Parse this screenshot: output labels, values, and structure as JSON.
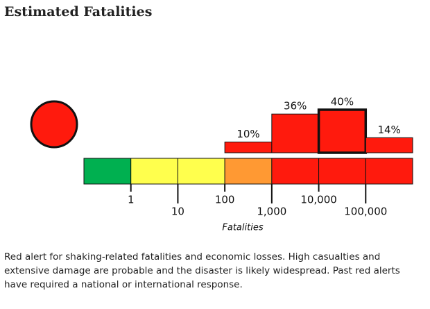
{
  "header": {
    "title": "Estimated Fatalities"
  },
  "chart_data": {
    "type": "bar",
    "xlabel": "Fatalities",
    "values": [
      0,
      0,
      0,
      10,
      36,
      40,
      14
    ],
    "value_labels": [
      null,
      null,
      null,
      "10%",
      "36%",
      "40%",
      "14%"
    ],
    "color": "#ff1a0d",
    "scale_colors": [
      "#00b050",
      "#ffff4d",
      "#ffff4d",
      "#ff9933",
      "#ff1a0d",
      "#ff1a0d",
      "#ff1a0d"
    ],
    "highlight": 5,
    "alert_color": "#ff1a0d",
    "xticks": [
      1,
      10,
      100,
      {
        "value": 1000,
        "label": "1,000"
      },
      {
        "value": 10000,
        "label": "10,000"
      },
      {
        "value": 100000,
        "label": "100,000"
      }
    ]
  },
  "description": "Red alert for shaking-related fatalities and economic losses. High casualties and extensive damage are probable and the disaster is likely widespread. Past red alerts have required a national or international response."
}
